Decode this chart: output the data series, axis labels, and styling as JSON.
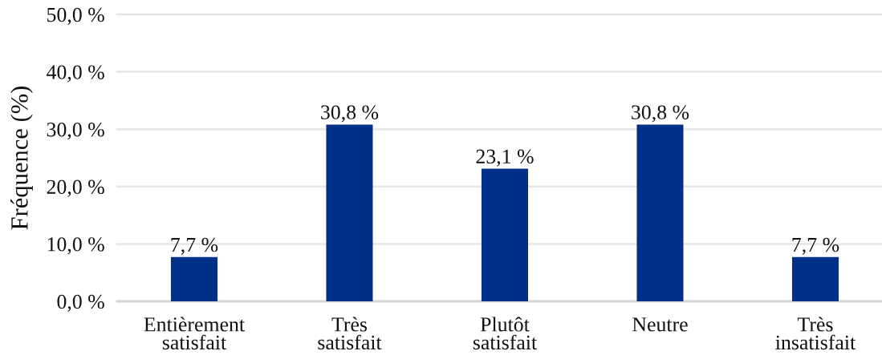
{
  "chart_data": {
    "type": "bar",
    "categories": [
      "Entièrement\nsatisfait",
      "Très\nsatisfait",
      "Plutôt\nsatisfait",
      "Neutre",
      "Très\ninsatisfait"
    ],
    "values": [
      7.7,
      30.8,
      23.1,
      30.8,
      7.7
    ],
    "value_labels": [
      "7,7 %",
      "30,8 %",
      "23,1 %",
      "30,8 %",
      "7,7 %"
    ],
    "color": "#003087",
    "ylabel": "Fréquence (%)",
    "ylim": [
      0,
      50
    ],
    "yticks": [
      {
        "value": 0,
        "label": "0,0 %"
      },
      {
        "value": 10,
        "label": "10,0 %"
      },
      {
        "value": 20,
        "label": "20,0 %"
      },
      {
        "value": 30,
        "label": "30,0 %"
      },
      {
        "value": 40,
        "label": "40,0 %"
      },
      {
        "value": 50,
        "label": "50,0 %"
      }
    ],
    "grid": "y",
    "legend": false
  }
}
